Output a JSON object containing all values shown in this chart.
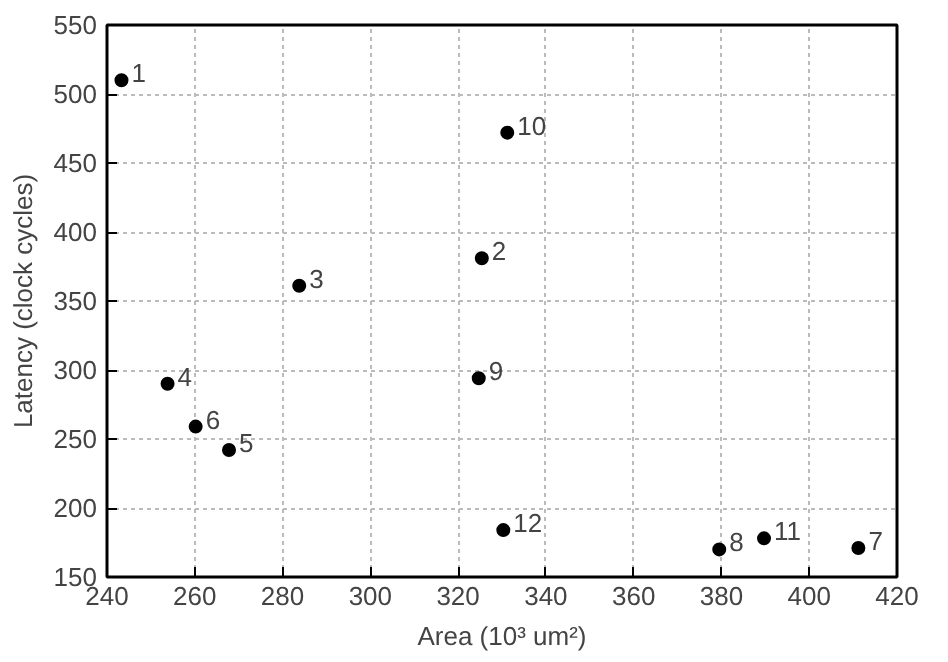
{
  "chart_data": {
    "type": "scatter",
    "xlabel": "Area (10³ um²)",
    "ylabel": "Latency (clock cycles)",
    "x": [
      243.3,
      325.4,
      283.8,
      253.8,
      267.8,
      260.2,
      411.2,
      379.5,
      324.7,
      331.2,
      389.7,
      330.3
    ],
    "series": [
      {
        "color": "#000000",
        "values": [
          510,
          381,
          361,
          290,
          242,
          259,
          171,
          170,
          294,
          472,
          178,
          184
        ]
      }
    ],
    "xlim": [
      240,
      420
    ],
    "xticks": [
      240,
      260,
      280,
      300,
      320,
      340,
      360,
      380,
      400,
      420
    ],
    "ylim": [
      150,
      550
    ],
    "yticks": [
      150,
      200,
      250,
      300,
      350,
      400,
      450,
      500,
      550
    ],
    "grid": true,
    "marker": "circle",
    "annotations": [
      {
        "text": "1",
        "x": 243.3,
        "y": 510
      },
      {
        "text": "2",
        "x": 325.4,
        "y": 381
      },
      {
        "text": "3",
        "x": 283.8,
        "y": 361
      },
      {
        "text": "4",
        "x": 253.8,
        "y": 290
      },
      {
        "text": "5",
        "x": 267.8,
        "y": 242
      },
      {
        "text": "6",
        "x": 260.2,
        "y": 259
      },
      {
        "text": "7",
        "x": 411.2,
        "y": 171
      },
      {
        "text": "8",
        "x": 379.5,
        "y": 170
      },
      {
        "text": "9",
        "x": 324.7,
        "y": 294
      },
      {
        "text": "10",
        "x": 331.2,
        "y": 472
      },
      {
        "text": "11",
        "x": 389.7,
        "y": 178
      },
      {
        "text": "12",
        "x": 330.3,
        "y": 184
      }
    ]
  }
}
